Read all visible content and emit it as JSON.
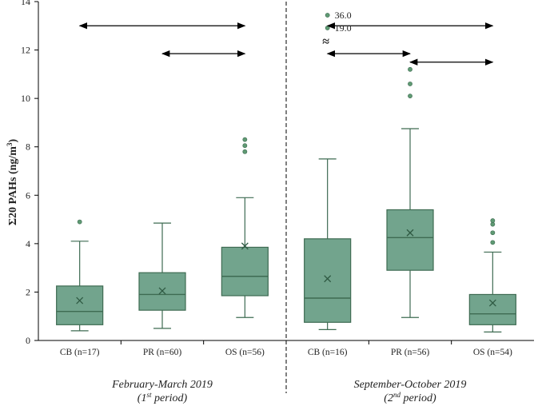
{
  "chart_data": {
    "type": "box",
    "ylabel_prefix": "Σ20 PAHs (ng/m",
    "ylabel_sup": "3",
    "ylabel_suffix": ")",
    "ylim": [
      0,
      14
    ],
    "yticks": [
      0,
      2,
      4,
      6,
      8,
      10,
      12,
      14
    ],
    "colors": {
      "box_fill": "#72a48d",
      "box_stroke": "#3e6b52",
      "outlier": "#5f9a73",
      "axis": "#000000"
    },
    "periods": [
      {
        "label": "February-March 2019",
        "sub_prefix": "(1",
        "sub_sup": "st",
        "sub_suffix": " period)"
      },
      {
        "label": "September-October 2019",
        "sub_prefix": "(2",
        "sub_sup": "nd",
        "sub_suffix": " period)"
      }
    ],
    "boxes": [
      {
        "label": "CB (n=17)",
        "period": 0,
        "min": 0.4,
        "q1": 0.65,
        "median": 1.2,
        "q3": 2.25,
        "max": 4.1,
        "mean": 1.65,
        "outliers": [
          4.9
        ]
      },
      {
        "label": "PR (n=60)",
        "period": 0,
        "min": 0.5,
        "q1": 1.25,
        "median": 1.9,
        "q3": 2.8,
        "max": 4.85,
        "mean": 2.05,
        "outliers": []
      },
      {
        "label": "OS (n=56)",
        "period": 0,
        "min": 0.95,
        "q1": 1.85,
        "median": 2.65,
        "q3": 3.85,
        "max": 5.9,
        "mean": 3.9,
        "outliers": [
          7.8,
          8.05,
          8.3
        ]
      },
      {
        "label": "CB (n=16)",
        "period": 1,
        "min": 0.45,
        "q1": 0.75,
        "median": 1.75,
        "q3": 4.2,
        "max": 7.5,
        "mean": 2.55,
        "outliers": []
      },
      {
        "label": "PR (n=56)",
        "period": 1,
        "min": 0.95,
        "q1": 2.9,
        "median": 4.25,
        "q3": 5.4,
        "max": 8.75,
        "mean": 4.45,
        "outliers": [
          10.1,
          10.6,
          11.2
        ]
      },
      {
        "label": "OS (n=54)",
        "period": 1,
        "min": 0.35,
        "q1": 0.65,
        "median": 1.1,
        "q3": 1.9,
        "max": 3.65,
        "mean": 1.55,
        "outliers": [
          4.05,
          4.45,
          4.8,
          4.95
        ]
      }
    ],
    "extreme_outliers": [
      {
        "box": 3,
        "value": "36.0"
      },
      {
        "box": 3,
        "value": "19.0"
      }
    ],
    "axis_break_symbol": "≈",
    "comparisons": [
      {
        "from": 0,
        "to": 2,
        "y": 13.0
      },
      {
        "from": 1,
        "to": 2,
        "y": 11.85
      },
      {
        "from": 3,
        "to": 5,
        "y": 13.0
      },
      {
        "from": 3,
        "to": 4,
        "y": 11.85
      },
      {
        "from": 4,
        "to": 5,
        "y": 11.5
      }
    ]
  }
}
